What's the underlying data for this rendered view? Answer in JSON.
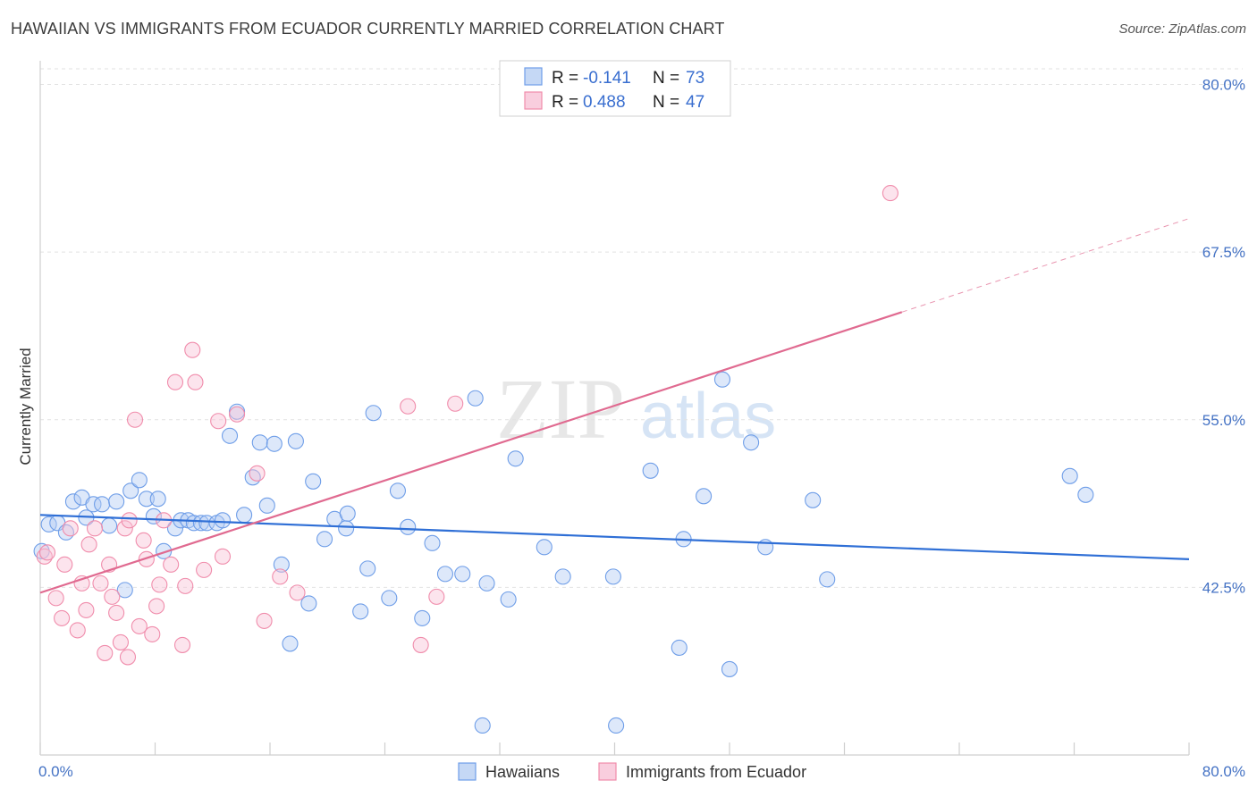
{
  "header": {
    "title": "HAWAIIAN VS IMMIGRANTS FROM ECUADOR CURRENTLY MARRIED CORRELATION CHART",
    "source": "Source: ZipAtlas.com"
  },
  "watermark": {
    "zip": "ZIP",
    "atlas": "atlas"
  },
  "legend_top": {
    "rows": [
      {
        "r_label": "R =",
        "r_value": "-0.141",
        "n_label": "N =",
        "n_value": "73",
        "color": "#6f9ee8"
      },
      {
        "r_label": "R =",
        "r_value": "0.488",
        "n_label": "N =",
        "n_value": "47",
        "color": "#f08cab"
      }
    ]
  },
  "legend_bottom": {
    "items": [
      {
        "label": "Hawaiians",
        "color": "#6f9ee8"
      },
      {
        "label": "Immigrants from Ecuador",
        "color": "#f08cab"
      }
    ]
  },
  "chart_data": {
    "type": "scatter",
    "title": "HAWAIIAN VS IMMIGRANTS FROM ECUADOR CURRENTLY MARRIED CORRELATION CHART",
    "xlabel": "",
    "ylabel": "Currently Married",
    "xlim": [
      0,
      80
    ],
    "ylim": [
      30,
      81.5
    ],
    "x_tick_labels": [
      "0.0%",
      "80.0%"
    ],
    "y_ticks": [
      42.5,
      55.0,
      67.5,
      80.0
    ],
    "y_tick_labels": [
      "42.5%",
      "55.0%",
      "67.5%",
      "80.0%"
    ],
    "grid": "horizontal dashed",
    "legend": "top-center",
    "series": [
      {
        "name": "Hawaiians",
        "color": "#6f9ee8",
        "line_color": "#2f6fd6",
        "trend": {
          "x": [
            0,
            80
          ],
          "y": [
            47.9,
            44.6
          ],
          "solid_until": 80
        },
        "points": [
          [
            0.1,
            45.2
          ],
          [
            0.6,
            47.2
          ],
          [
            1.2,
            47.3
          ],
          [
            1.8,
            46.6
          ],
          [
            2.3,
            48.9
          ],
          [
            2.9,
            49.2
          ],
          [
            3.2,
            47.7
          ],
          [
            3.7,
            48.7
          ],
          [
            4.3,
            48.7
          ],
          [
            4.8,
            47.1
          ],
          [
            5.3,
            48.9
          ],
          [
            5.9,
            42.3
          ],
          [
            6.3,
            49.7
          ],
          [
            6.9,
            50.5
          ],
          [
            7.4,
            49.1
          ],
          [
            7.9,
            47.8
          ],
          [
            8.2,
            49.1
          ],
          [
            8.6,
            45.2
          ],
          [
            9.4,
            46.9
          ],
          [
            9.8,
            47.5
          ],
          [
            10.3,
            47.5
          ],
          [
            10.7,
            47.3
          ],
          [
            11.2,
            47.3
          ],
          [
            11.6,
            47.3
          ],
          [
            12.3,
            47.3
          ],
          [
            12.7,
            47.5
          ],
          [
            13.2,
            53.8
          ],
          [
            13.7,
            55.6
          ],
          [
            14.2,
            47.9
          ],
          [
            14.8,
            50.7
          ],
          [
            15.3,
            53.3
          ],
          [
            15.8,
            48.6
          ],
          [
            16.3,
            53.2
          ],
          [
            16.8,
            44.2
          ],
          [
            17.4,
            38.3
          ],
          [
            17.8,
            53.4
          ],
          [
            18.7,
            41.3
          ],
          [
            19.0,
            50.4
          ],
          [
            19.8,
            46.1
          ],
          [
            20.5,
            47.6
          ],
          [
            21.3,
            46.9
          ],
          [
            21.4,
            48.0
          ],
          [
            22.3,
            40.7
          ],
          [
            22.8,
            43.9
          ],
          [
            23.2,
            55.5
          ],
          [
            24.3,
            41.7
          ],
          [
            24.9,
            49.7
          ],
          [
            25.6,
            47.0
          ],
          [
            26.6,
            40.2
          ],
          [
            27.3,
            45.8
          ],
          [
            28.2,
            43.5
          ],
          [
            29.4,
            43.5
          ],
          [
            30.3,
            56.6
          ],
          [
            30.8,
            32.2
          ],
          [
            31.1,
            42.8
          ],
          [
            32.6,
            41.6
          ],
          [
            33.1,
            52.1
          ],
          [
            35.1,
            45.5
          ],
          [
            36.4,
            43.3
          ],
          [
            39.9,
            43.3
          ],
          [
            40.1,
            32.2
          ],
          [
            42.5,
            51.2
          ],
          [
            44.5,
            38.0
          ],
          [
            44.8,
            46.1
          ],
          [
            46.2,
            49.3
          ],
          [
            47.5,
            58.0
          ],
          [
            48.0,
            36.4
          ],
          [
            49.5,
            53.3
          ],
          [
            50.5,
            45.5
          ],
          [
            53.8,
            49.0
          ],
          [
            54.8,
            43.1
          ],
          [
            71.7,
            50.8
          ],
          [
            72.8,
            49.4
          ]
        ]
      },
      {
        "name": "Immigrants from Ecuador",
        "color": "#f08cab",
        "line_color": "#e06a90",
        "trend": {
          "x": [
            0,
            80
          ],
          "y": [
            42.1,
            70.0
          ],
          "solid_until": 60
        },
        "points": [
          [
            0.3,
            44.8
          ],
          [
            0.5,
            45.1
          ],
          [
            1.1,
            41.7
          ],
          [
            1.5,
            40.2
          ],
          [
            1.7,
            44.2
          ],
          [
            2.1,
            46.9
          ],
          [
            2.6,
            39.3
          ],
          [
            2.9,
            42.8
          ],
          [
            3.2,
            40.8
          ],
          [
            3.4,
            45.7
          ],
          [
            3.8,
            46.9
          ],
          [
            4.2,
            42.8
          ],
          [
            4.5,
            37.6
          ],
          [
            4.8,
            44.2
          ],
          [
            5.0,
            41.8
          ],
          [
            5.3,
            40.6
          ],
          [
            5.6,
            38.4
          ],
          [
            5.9,
            46.9
          ],
          [
            6.1,
            37.3
          ],
          [
            6.2,
            47.5
          ],
          [
            6.6,
            55.0
          ],
          [
            6.9,
            39.6
          ],
          [
            7.2,
            46.0
          ],
          [
            7.4,
            44.6
          ],
          [
            7.8,
            39.0
          ],
          [
            8.1,
            41.1
          ],
          [
            8.3,
            42.7
          ],
          [
            8.6,
            47.5
          ],
          [
            9.1,
            44.2
          ],
          [
            9.4,
            57.8
          ],
          [
            9.9,
            38.2
          ],
          [
            10.1,
            42.6
          ],
          [
            10.6,
            60.2
          ],
          [
            10.8,
            57.8
          ],
          [
            11.4,
            43.8
          ],
          [
            12.4,
            54.9
          ],
          [
            12.7,
            44.8
          ],
          [
            13.7,
            55.4
          ],
          [
            15.1,
            51.0
          ],
          [
            15.6,
            40.0
          ],
          [
            16.7,
            43.3
          ],
          [
            17.9,
            42.1
          ],
          [
            26.5,
            38.2
          ],
          [
            27.6,
            41.8
          ],
          [
            59.2,
            71.9
          ],
          [
            25.6,
            56.0
          ],
          [
            28.9,
            56.2
          ]
        ]
      }
    ]
  }
}
